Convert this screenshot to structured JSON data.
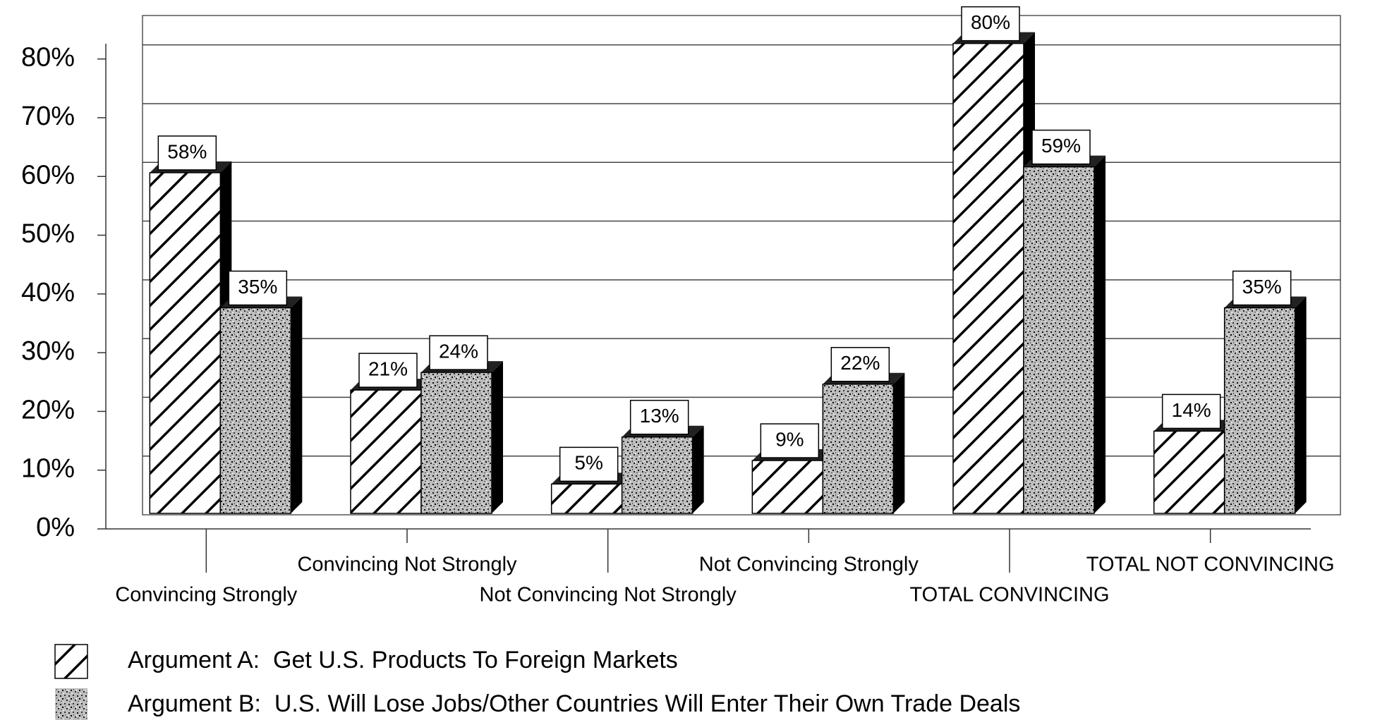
{
  "chart_data": {
    "type": "bar",
    "categories": [
      "Convincing Strongly",
      "Convincing Not Strongly",
      "Not Convincing Not Strongly",
      "Not Convincing Strongly",
      "TOTAL CONVINCING",
      "TOTAL NOT CONVINCING"
    ],
    "series": [
      {
        "name": "Argument A:  Get U.S. Products To Foreign Markets",
        "color": "#ffffff",
        "pattern": "hatch",
        "values": [
          58,
          21,
          5,
          9,
          80,
          14
        ],
        "value_labels": [
          "58%",
          "21%",
          "5%",
          "9%",
          "80%",
          "14%"
        ]
      },
      {
        "name": "Argument B:  U.S. Will Lose Jobs/Other Countries Will Enter Their Own Trade Deals",
        "color": "#9a9a9a",
        "pattern": "stipple",
        "values": [
          35,
          24,
          13,
          22,
          59,
          35
        ],
        "value_labels": [
          "35%",
          "24%",
          "13%",
          "22%",
          "59%",
          "35%"
        ]
      }
    ],
    "ylim": [
      0,
      85
    ],
    "yticks": [
      {
        "value": 0,
        "label": "0%"
      },
      {
        "value": 10,
        "label": "10%"
      },
      {
        "value": 20,
        "label": "20%"
      },
      {
        "value": 30,
        "label": "30%"
      },
      {
        "value": 40,
        "label": "40%"
      },
      {
        "value": 50,
        "label": "50%"
      },
      {
        "value": 60,
        "label": "60%"
      },
      {
        "value": 70,
        "label": "70%"
      },
      {
        "value": 80,
        "label": "80%"
      }
    ],
    "grid": true,
    "legend": "bottom-left"
  }
}
